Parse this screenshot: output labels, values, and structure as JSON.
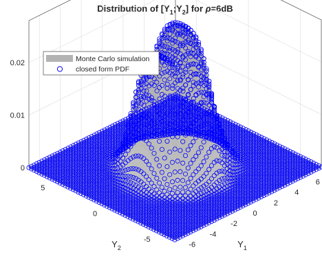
{
  "chart_data": {
    "type": "surface3d",
    "title_main": "Distribution of [Y",
    "title_sub1": "1",
    "title_sep": ";Y",
    "title_sub2": "2",
    "title_mid": "] for ",
    "title_rho": "ρ",
    "title_tail": "=6dB",
    "xlabel_main": "Y",
    "xlabel_sub": "1",
    "ylabel_main": "Y",
    "ylabel_sub": "2",
    "x_ticks": [
      "-6",
      "-4",
      "-2",
      "0",
      "2",
      "4",
      "6"
    ],
    "y_ticks": [
      "-5",
      "0",
      "5"
    ],
    "z_ticks": [
      "0",
      "0.01",
      "0.02"
    ],
    "x_range": [
      -7,
      7
    ],
    "y_range": [
      -7,
      7
    ],
    "z_range": [
      0,
      0.028
    ],
    "peak_density": 0.024,
    "grid": true,
    "box": true,
    "legend_location": "top-left",
    "series": [
      {
        "name": "Monte Carlo simulation",
        "style": "surface",
        "color": "#b3b3b3"
      },
      {
        "name": "closed form PDF",
        "style": "markers",
        "marker": "o",
        "color": "#0000ff"
      }
    ]
  }
}
